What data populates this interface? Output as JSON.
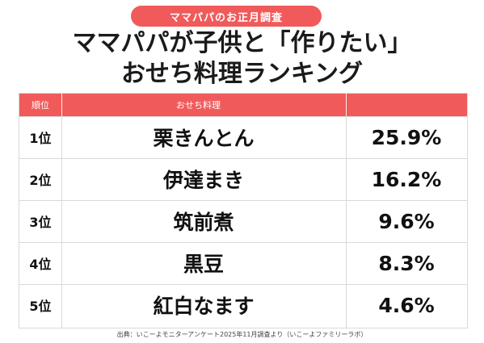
{
  "badge": "ママパパのお正月調査",
  "title_line1": "ママパパが子供と「作りたい」",
  "title_line2": "おせち料理ランキング",
  "table": {
    "headers": [
      "順位",
      "おせち料理",
      ""
    ],
    "rows": [
      {
        "rank": "1位",
        "dish": "栗きんとん",
        "percent": "25.9%"
      },
      {
        "rank": "2位",
        "dish": "伊達まき",
        "percent": "16.2%"
      },
      {
        "rank": "3位",
        "dish": "筑前煮",
        "percent": "9.6%"
      },
      {
        "rank": "4位",
        "dish": "黒豆",
        "percent": "8.3%"
      },
      {
        "rank": "5位",
        "dish": "紅白なます",
        "percent": "4.6%"
      }
    ]
  },
  "source": "出典：いこーよモニターアンケート2025年11月調査より（いこーよファミリーラボ）",
  "colors": {
    "accent": "#f15a5a",
    "text": "#111111",
    "border": "#d9d9d9"
  }
}
